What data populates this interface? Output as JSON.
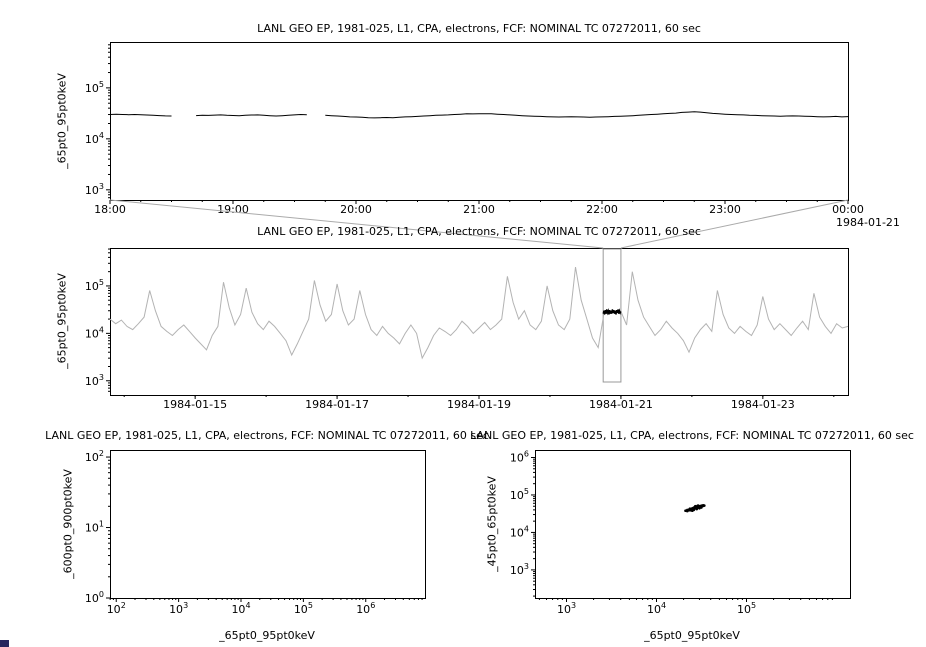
{
  "window": {
    "background": "#ffffff",
    "corner_artifact_color": "#26265e"
  },
  "chart_data": [
    {
      "id": "zoom-timeseries",
      "type": "line",
      "title": "LANL GEO EP, 1981-025, L1, CPA, electrons, FCF: NOMINAL TC 07272011, 60 sec",
      "ylabel": "_65pt0_95pt0keV",
      "xlabel": "",
      "annotation": "1984-01-21",
      "grid": false,
      "x_axis": {
        "scale": "linear",
        "range": [
          18,
          24
        ],
        "minor_step": 0.25,
        "ticks": [
          {
            "v": 18,
            "label": "18:00"
          },
          {
            "v": 19,
            "label": "19:00"
          },
          {
            "v": 20,
            "label": "20:00"
          },
          {
            "v": 21,
            "label": "21:00"
          },
          {
            "v": 22,
            "label": "22:00"
          },
          {
            "v": 23,
            "label": "23:00"
          },
          {
            "v": 24,
            "label": "00:00"
          }
        ]
      },
      "y_axis": {
        "scale": "log",
        "range_exp": [
          2.8,
          5.9
        ],
        "tick_exps": [
          3,
          4,
          5
        ]
      },
      "series": [
        {
          "name": "flux-65-95keV-zoom",
          "color": "#000000",
          "width": 1,
          "x_start": 18,
          "x_step": 0.05,
          "values": [
            30000.0,
            30500.0,
            30000.0,
            29800.0,
            30000.0,
            29600.0,
            29300.0,
            29000.0,
            28600.0,
            28200.0,
            28000.0,
            null,
            null,
            null,
            28600.0,
            29000.0,
            28800.0,
            29200.0,
            29500.0,
            29000.0,
            28700.0,
            28500.0,
            29000.0,
            29300.0,
            29500.0,
            29000.0,
            28500.0,
            28000.0,
            28500.0,
            29000.0,
            29500.0,
            30000.0,
            29600.0,
            null,
            null,
            29000.0,
            28500.0,
            28000.0,
            27500.0,
            27000.0,
            26800.0,
            26500.0,
            26000.0,
            25800.0,
            26000.0,
            26200.0,
            26000.0,
            26500.0,
            27000.0,
            27200.0,
            27500.0,
            28000.0,
            28500.0,
            29000.0,
            29200.0,
            29500.0,
            30000.0,
            30500.0,
            31000.0,
            30800.0,
            31000.0,
            31200.0,
            31000.0,
            30500.0,
            30000.0,
            29500.0,
            29000.0,
            28500.0,
            28000.0,
            27800.0,
            27500.0,
            27200.0,
            27000.0,
            26800.0,
            27000.0,
            27200.0,
            27000.0,
            26800.0,
            26500.0,
            26800.0,
            27000.0,
            27200.0,
            27500.0,
            27800.0,
            28000.0,
            28500.0,
            29000.0,
            29500.0,
            30000.0,
            30500.0,
            31000.0,
            31500.0,
            32000.0,
            33000.0,
            33500.0,
            34000.0,
            33500.0,
            32500.0,
            31500.0,
            31000.0,
            30500.0,
            30000.0,
            29800.0,
            29500.0,
            29000.0,
            28800.0,
            28500.0,
            28200.0,
            28000.0,
            27800.0,
            28000.0,
            28200.0,
            28000.0,
            27800.0,
            27500.0,
            27200.0,
            27000.0,
            27200.0,
            27500.0,
            27000.0,
            27300.0
          ]
        }
      ]
    },
    {
      "id": "overview-timeseries",
      "type": "line",
      "title": "LANL GEO EP, 1981-025, L1, CPA, electrons, FCF: NOMINAL TC 07272011, 60 sec",
      "ylabel": "_65pt0_95pt0keV",
      "xlabel": "",
      "grid": false,
      "x_axis": {
        "scale": "linear",
        "range": [
          13.8,
          24.2
        ],
        "minor_step": 1,
        "ticks": [
          {
            "v": 15,
            "label": "1984-01-15"
          },
          {
            "v": 17,
            "label": "1984-01-17"
          },
          {
            "v": 19,
            "label": "1984-01-19"
          },
          {
            "v": 21,
            "label": "1984-01-21"
          },
          {
            "v": 23,
            "label": "1984-01-23"
          }
        ]
      },
      "y_axis": {
        "scale": "log",
        "range_exp": [
          2.7,
          5.8
        ],
        "tick_exps": [
          3,
          4,
          5
        ]
      },
      "selection": {
        "x_from": 20.75,
        "x_to": 21.0,
        "color": "#999999"
      },
      "series": [
        {
          "name": "flux-65-95keV-overview",
          "color": "#b3b3b3",
          "width": 1,
          "x_start": 13.8,
          "x_step": 0.08,
          "values": [
            20000.0,
            16000.0,
            19000.0,
            14000.0,
            12000.0,
            16000.0,
            22000.0,
            80000.0,
            30000.0,
            14000.0,
            11000.0,
            9000.0,
            12000.0,
            15000.0,
            11000.0,
            8000.0,
            6000.0,
            4500.0,
            9000.0,
            14000.0,
            120000.0,
            35000.0,
            15000.0,
            25000.0,
            90000.0,
            28000.0,
            16000.0,
            12000.0,
            18000.0,
            14000.0,
            10000.0,
            7000.0,
            3500.0,
            6000.0,
            11000.0,
            20000.0,
            130000.0,
            40000.0,
            18000.0,
            25000.0,
            110000.0,
            30000.0,
            15000.0,
            20000.0,
            80000.0,
            25000.0,
            12000.0,
            9000.0,
            14000.0,
            10000.0,
            8000.0,
            6000.0,
            10000.0,
            15000.0,
            10000.0,
            3000.0,
            5000.0,
            9000.0,
            13000.0,
            11000.0,
            9000.0,
            12000.0,
            18000.0,
            14000.0,
            10000.0,
            13000.0,
            17000.0,
            12000.0,
            15000.0,
            20000.0,
            160000.0,
            45000.0,
            20000.0,
            30000.0,
            15000.0,
            12000.0,
            18000.0,
            100000.0,
            30000.0,
            15000.0,
            12000.0,
            20000.0,
            250000.0,
            50000.0,
            20000.0,
            8000.0,
            5000.0,
            26000.0,
            30000.0,
            28000.0,
            29000.0,
            15000.0,
            200000.0,
            50000.0,
            22000.0,
            14000.0,
            9000.0,
            12000.0,
            18000.0,
            13000.0,
            10000.0,
            7000.0,
            4000.0,
            8000.0,
            12000.0,
            16000.0,
            11000.0,
            80000.0,
            25000.0,
            13000.0,
            10000.0,
            14000.0,
            11000.0,
            9000.0,
            15000.0,
            60000.0,
            20000.0,
            12000.0,
            16000.0,
            12000.0,
            9000.0,
            13000.0,
            18000.0,
            12000.0,
            70000.0,
            22000.0,
            14000.0,
            10000.0,
            16000.0,
            13000.0,
            14000.0
          ]
        },
        {
          "name": "flux-65-95keV-selected",
          "color": "#000000",
          "width": 1.4,
          "x_start": 20.75,
          "x_step": 0.01,
          "values": [
            26000.0,
            30000.0,
            25000.0,
            31000.0,
            26000.0,
            32000.0,
            27000.0,
            30000.0,
            25000.0,
            31000.0,
            26000.0,
            30000.0,
            26000.0,
            32000.0,
            27000.0,
            31000.0,
            26000.0,
            30000.0,
            25000.0,
            31000.0,
            27000.0,
            32000.0,
            26000.0,
            30000.0,
            27000.0,
            29000.0
          ]
        }
      ]
    },
    {
      "id": "scatter-600-900",
      "type": "scatter",
      "title": "LANL GEO EP, 1981-025, L1, CPA, electrons, FCF: NOMINAL TC 07272011, 60 sec",
      "ylabel": "_600pt0_900pt0keV",
      "xlabel": "_65pt0_95pt0keV",
      "grid": false,
      "x_axis": {
        "scale": "log",
        "range_exp": [
          1.9,
          6.95
        ],
        "tick_exps": [
          2,
          3,
          4,
          5,
          6
        ]
      },
      "y_axis": {
        "scale": "log",
        "range_exp": [
          0,
          2.1
        ],
        "tick_exps": [
          0,
          1,
          2
        ]
      },
      "points": []
    },
    {
      "id": "scatter-45-65",
      "type": "scatter",
      "title": "LANL GEO EP, 1981-025, L1, CPA, electrons, FCF: NOMINAL TC 07272011, 60 sec",
      "ylabel": "_45pt0_65pt0keV",
      "xlabel": "_65pt0_95pt0keV",
      "grid": false,
      "x_axis": {
        "scale": "log",
        "range_exp": [
          2.65,
          6.15
        ],
        "tick_exps": [
          3,
          4,
          5
        ]
      },
      "y_axis": {
        "scale": "log",
        "range_exp": [
          2.25,
          6.2
        ],
        "tick_exps": [
          3,
          4,
          5,
          6
        ]
      },
      "points": [
        [
          21000.0,
          38000.0
        ],
        [
          22000.0,
          40000.0
        ],
        [
          23000.0,
          39000.0
        ],
        [
          24000.0,
          42000.0
        ],
        [
          25000.0,
          41000.0
        ],
        [
          25000.0,
          44000.0
        ],
        [
          26000.0,
          43000.0
        ],
        [
          26000.0,
          46000.0
        ],
        [
          27000.0,
          44000.0
        ],
        [
          27000.0,
          47000.0
        ],
        [
          28000.0,
          45000.0
        ],
        [
          28000.0,
          48000.0
        ],
        [
          29000.0,
          46000.0
        ],
        [
          29000.0,
          49000.0
        ],
        [
          30000.0,
          47000.0
        ],
        [
          30000.0,
          50000.0
        ],
        [
          31000.0,
          49000.0
        ],
        [
          31000.0,
          51000.0
        ],
        [
          32000.0,
          50000.0
        ],
        [
          32000.0,
          52000.0
        ],
        [
          33000.0,
          51000.0
        ],
        [
          24000.0,
          39000.0
        ],
        [
          23000.0,
          41000.0
        ],
        [
          26000.0,
          40000.0
        ],
        [
          28000.0,
          42000.0
        ],
        [
          30000.0,
          44000.0
        ],
        [
          22000.0,
          37000.0
        ],
        [
          29000.0,
          52000.0
        ],
        [
          33000.0,
          53000.0
        ],
        [
          25000.0,
          38000.0
        ],
        [
          27000.0,
          50000.0
        ],
        [
          34000.0,
          52000.0
        ],
        [
          23500.0,
          43000.0
        ],
        [
          31500.0,
          46000.0
        ],
        [
          28500.0,
          51000.0
        ]
      ]
    }
  ]
}
